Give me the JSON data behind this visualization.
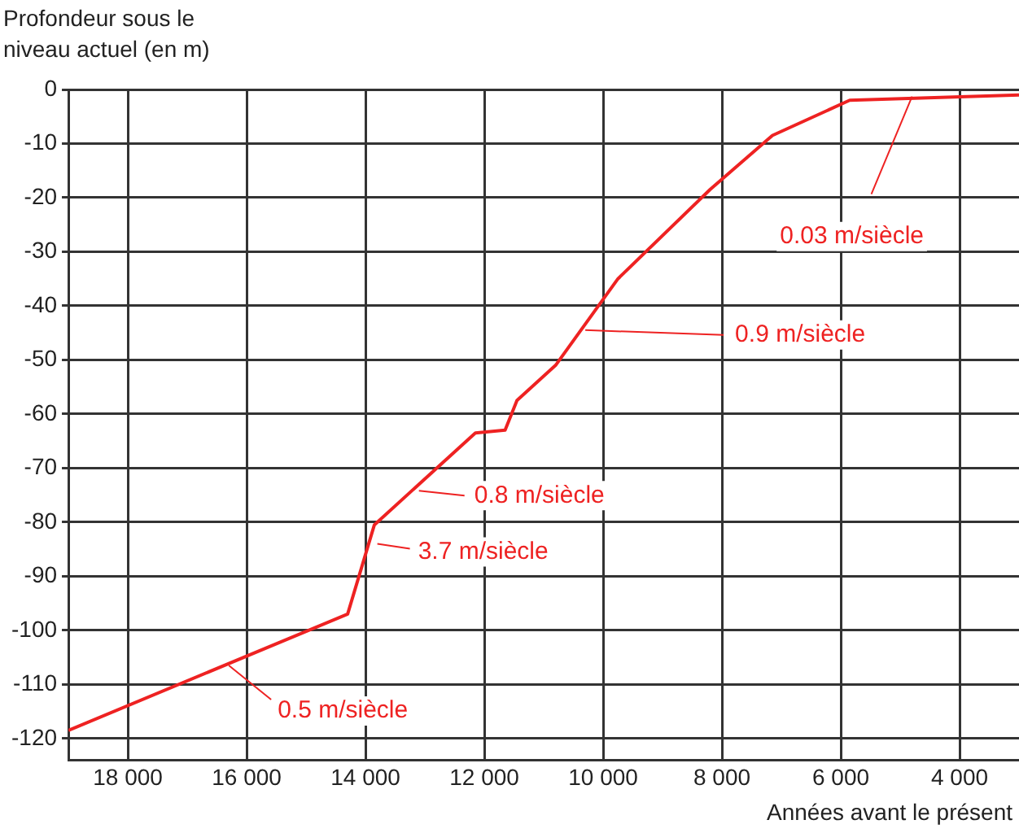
{
  "chart_data": {
    "type": "line",
    "ylabel": "Profondeur sous le niveau actuel (en m)",
    "xlabel": "Années avant le présent",
    "x": [
      19000,
      14300,
      13850,
      12150,
      11650,
      11450,
      10800,
      9750,
      8200,
      7150,
      5850,
      3000
    ],
    "series": [
      {
        "color": "#ee2222",
        "values": [
          -118.5,
          -97,
          -80.5,
          -63.5,
          -63,
          -57.5,
          -51,
          -35,
          -18.5,
          -8.5,
          -2,
          -1
        ]
      }
    ],
    "xlim": [
      19000,
      3000
    ],
    "xticks": [
      {
        "value": 18000,
        "label": "18 000"
      },
      {
        "value": 16000,
        "label": "16 000"
      },
      {
        "value": 14000,
        "label": "14 000"
      },
      {
        "value": 12000,
        "label": "12 000"
      },
      {
        "value": 10000,
        "label": "10 000"
      },
      {
        "value": 8000,
        "label": "8 000"
      },
      {
        "value": 6000,
        "label": "6 000"
      },
      {
        "value": 4000,
        "label": "4 000"
      }
    ],
    "ylim": [
      -124,
      0
    ],
    "yticks": [
      0,
      -10,
      -20,
      -30,
      -40,
      -50,
      -60,
      -70,
      -80,
      -90,
      -100,
      -110,
      -120
    ],
    "grid": true,
    "legend": false,
    "marker": "none",
    "line_style": "solid",
    "annotations": [
      {
        "text": "0.03 m/siècle",
        "x": 4800,
        "y": -1.3
      },
      {
        "text": "0.9 m/siècle",
        "x": 10300,
        "y": -44.5
      },
      {
        "text": "0.8 m/siècle",
        "x": 13100,
        "y": -74.2
      },
      {
        "text": "3.7 m/siècle",
        "x": 13800,
        "y": -84
      },
      {
        "text": "0.5 m/siècle",
        "x": 16300,
        "y": -106.5
      }
    ]
  }
}
